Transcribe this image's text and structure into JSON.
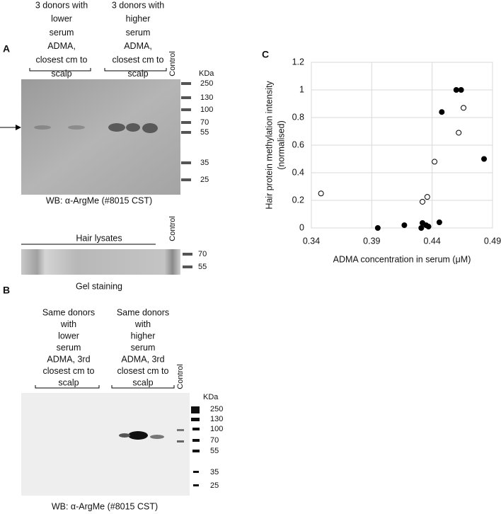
{
  "panel_a": {
    "label": "A",
    "group_labels": [
      [
        "3 donors with",
        "lower",
        "serum",
        "ADMA,",
        "closest cm to",
        "scalp"
      ],
      [
        "3 donors with",
        "higher",
        "serum",
        "ADMA,",
        "closest cm to",
        "scalp"
      ]
    ],
    "control": "Control",
    "unit": "KDa",
    "markers": [
      "250",
      "130",
      "100",
      "70",
      "55",
      "35",
      "25"
    ],
    "caption": "WB: α-ArgMe (#8015 CST)"
  },
  "gel": {
    "group": "Hair lysates",
    "control": "Control",
    "markers": [
      "70",
      "55"
    ],
    "caption": "Gel staining"
  },
  "panel_b": {
    "label": "B",
    "group_labels": [
      [
        "Same donors",
        "with",
        "lower",
        "serum",
        "ADMA, 3rd",
        "closest cm to",
        "scalp"
      ],
      [
        "Same donors",
        "with",
        "higher",
        "serum",
        "ADMA, 3rd",
        "closest cm to",
        "scalp"
      ]
    ],
    "control": "Control",
    "unit": "KDa",
    "markers": [
      "250",
      "130",
      "100",
      "70",
      "55",
      "35",
      "25"
    ],
    "caption": "WB: α-ArgMe (#8015 CST)"
  },
  "chart_data": {
    "type": "scatter",
    "panel_label": "C",
    "xlabel": "ADMA concentration in serum (μM)",
    "ylabel": [
      "Hair protein methylation intensity",
      "(normalised)"
    ],
    "xlim": [
      0.34,
      0.49
    ],
    "xticks": [
      0.34,
      0.39,
      0.44,
      0.49
    ],
    "ylim": [
      0,
      1.2
    ],
    "yticks": [
      0,
      0.2,
      0.4,
      0.6,
      0.8,
      1,
      1.2
    ],
    "grid": true,
    "series": [
      {
        "color": "#000000",
        "filled": true,
        "x": [
          0.395,
          0.417,
          0.431,
          0.432,
          0.435,
          0.437,
          0.446,
          0.448,
          0.46,
          0.464,
          0.483
        ],
        "values": [
          0,
          0.02,
          0,
          0.036,
          0.02,
          0.01,
          0.041,
          0.84,
          1,
          1,
          0.5
        ]
      },
      {
        "color": "#000000",
        "filled": false,
        "x": [
          0.348,
          0.432,
          0.436,
          0.442,
          0.462,
          0.466
        ],
        "values": [
          0.25,
          0.19,
          0.225,
          0.48,
          0.69,
          0.87
        ]
      }
    ]
  }
}
